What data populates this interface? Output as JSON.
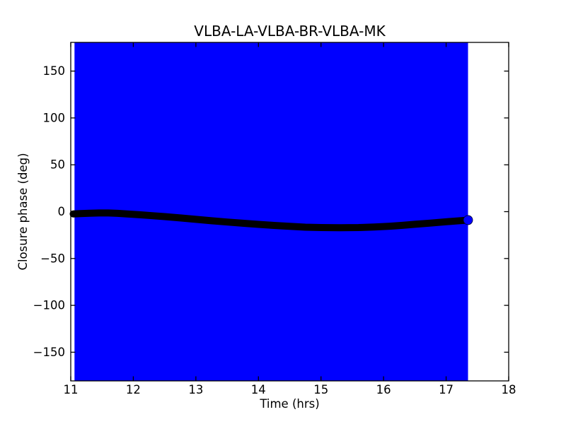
{
  "chart_data": {
    "type": "line",
    "title": "VLBA-LA-VLBA-BR-VLBA-MK",
    "xlabel": "Time (hrs)",
    "ylabel": "Closure phase (deg)",
    "xlim": [
      11,
      18
    ],
    "ylim": [
      -180.6,
      180.6
    ],
    "grid": false,
    "legend": "none",
    "xticks": [
      {
        "value": 11,
        "label": "11"
      },
      {
        "value": 12,
        "label": "12"
      },
      {
        "value": 13,
        "label": "13"
      },
      {
        "value": 14,
        "label": "14"
      },
      {
        "value": 15,
        "label": "15"
      },
      {
        "value": 16,
        "label": "16"
      },
      {
        "value": 17,
        "label": "17"
      },
      {
        "value": 18,
        "label": "18"
      }
    ],
    "yticks": [
      {
        "value": -150,
        "label": "−150"
      },
      {
        "value": -100,
        "label": "−100"
      },
      {
        "value": -50,
        "label": "−50"
      },
      {
        "value": 0,
        "label": "0"
      },
      {
        "value": 50,
        "label": "50"
      },
      {
        "value": 100,
        "label": "100"
      },
      {
        "value": 150,
        "label": "150"
      }
    ],
    "error_region": {
      "comment": "vertical error bars wrap the full phase range, forming a solid band",
      "x_start": 11.06,
      "x_end": 17.35,
      "y_min": -180.6,
      "y_max": 180.6,
      "color": "#0000ff"
    },
    "series": [
      {
        "name": "closure-phase",
        "color": "#000000",
        "line_width": 10,
        "x": [
          11.04,
          11.15,
          11.3,
          11.45,
          11.6,
          11.75,
          11.9,
          12.1,
          12.3,
          12.5,
          12.75,
          13.0,
          13.25,
          13.5,
          13.75,
          14.0,
          14.25,
          14.5,
          14.75,
          15.0,
          15.3,
          15.6,
          15.85,
          16.1,
          16.3,
          16.5,
          16.75,
          17.0,
          17.15,
          17.3
        ],
        "y": [
          -2.4,
          -2.0,
          -1.7,
          -1.4,
          -1.4,
          -1.8,
          -2.4,
          -3.3,
          -4.3,
          -5.3,
          -6.7,
          -8.2,
          -9.7,
          -11.1,
          -12.4,
          -13.6,
          -14.7,
          -15.7,
          -16.6,
          -17.0,
          -17.2,
          -17.0,
          -16.4,
          -15.5,
          -14.6,
          -13.5,
          -12.2,
          -10.8,
          -10.0,
          -9.3
        ]
      }
    ],
    "end_marker": {
      "x": 17.35,
      "y": -9.0,
      "color": "#0000ff",
      "radius_px": 6.5
    },
    "axes_color": "#000000",
    "background_color": "#ffffff"
  }
}
